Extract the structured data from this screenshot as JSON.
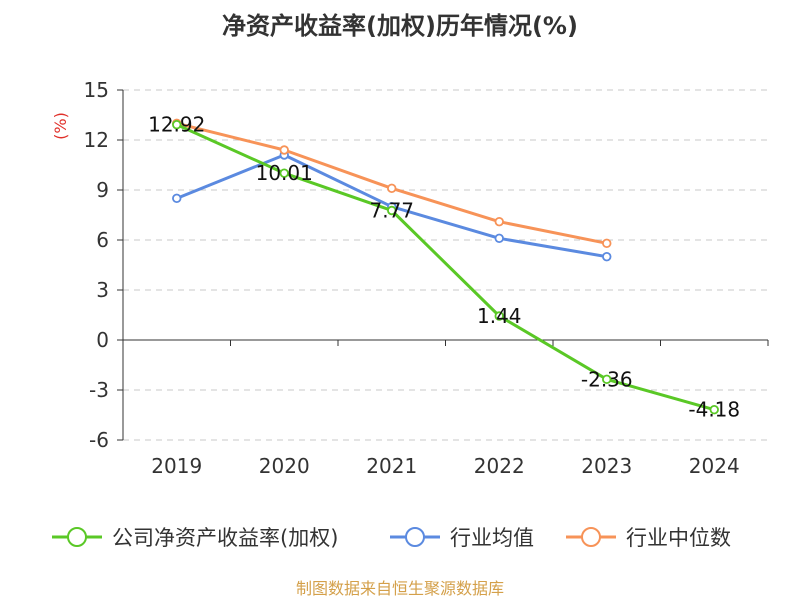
{
  "chart_data": {
    "type": "line",
    "title": "净资产收益率(加权)历年情况(%)",
    "ylabel": "(%)",
    "xlabel": "",
    "ylim": [
      -6,
      15
    ],
    "yticks": [
      15,
      12,
      9,
      6,
      3,
      0,
      -3,
      -6
    ],
    "grid": true,
    "categories": [
      "2019",
      "2020",
      "2021",
      "2022",
      "2023",
      "2024"
    ],
    "series": [
      {
        "name": "公司净资产收益率(加权)",
        "color": "#5ac826",
        "values": [
          12.92,
          10.01,
          7.77,
          1.44,
          -2.36,
          -4.18
        ],
        "labels": [
          "12.92",
          "10.01",
          "7.77",
          "1.44",
          "-2.36",
          "-4.18"
        ]
      },
      {
        "name": "行业均值",
        "color": "#5b8ae0",
        "values": [
          8.5,
          11.1,
          8.0,
          6.1,
          5.0,
          null
        ]
      },
      {
        "name": "行业中位数",
        "color": "#f79358",
        "values": [
          13.0,
          11.4,
          9.1,
          7.1,
          5.8,
          null
        ]
      }
    ],
    "legend_position": "bottom",
    "source": "制图数据来自恒生聚源数据库",
    "source_color": "#d4a04a",
    "ylabel_color": "#e0302a"
  }
}
